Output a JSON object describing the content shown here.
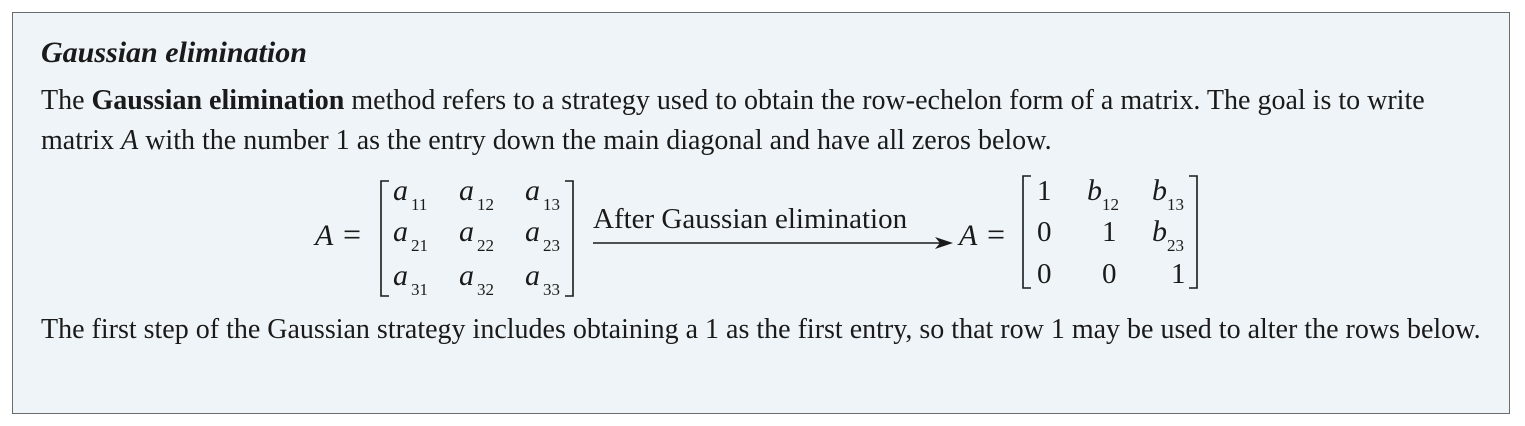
{
  "title": "Gaussian elimination",
  "intro": {
    "part1": "The ",
    "bold_term": "Gaussian elimination",
    "part2": " method refers to a strategy used to obtain the row-echelon form of a matrix. The goal is to write matrix ",
    "matrix_var": "A",
    "part3": " with the number 1 as the entry down the main diagonal and have all zeros below."
  },
  "equation": {
    "lhs_var": "A",
    "equals": "=",
    "arrow_label": "After Gaussian elimination",
    "left_matrix": {
      "base": "a",
      "subscripts": [
        [
          "11",
          "12",
          "13"
        ],
        [
          "21",
          "22",
          "23"
        ],
        [
          "31",
          "32",
          "33"
        ]
      ]
    },
    "right_matrix": {
      "row1": {
        "c1": "1",
        "c2_base": "b",
        "c2_sub": "12",
        "c3_base": "b",
        "c3_sub": "13"
      },
      "row2": {
        "c1": "0",
        "c2": "1",
        "c3_base": "b",
        "c3_sub": "23"
      },
      "row3": {
        "c1": "0",
        "c2": "0",
        "c3": "1"
      }
    }
  },
  "conclusion": "The first step of the Gaussian strategy includes obtaining a 1 as the first entry, so that row 1 may be used to alter the rows below."
}
